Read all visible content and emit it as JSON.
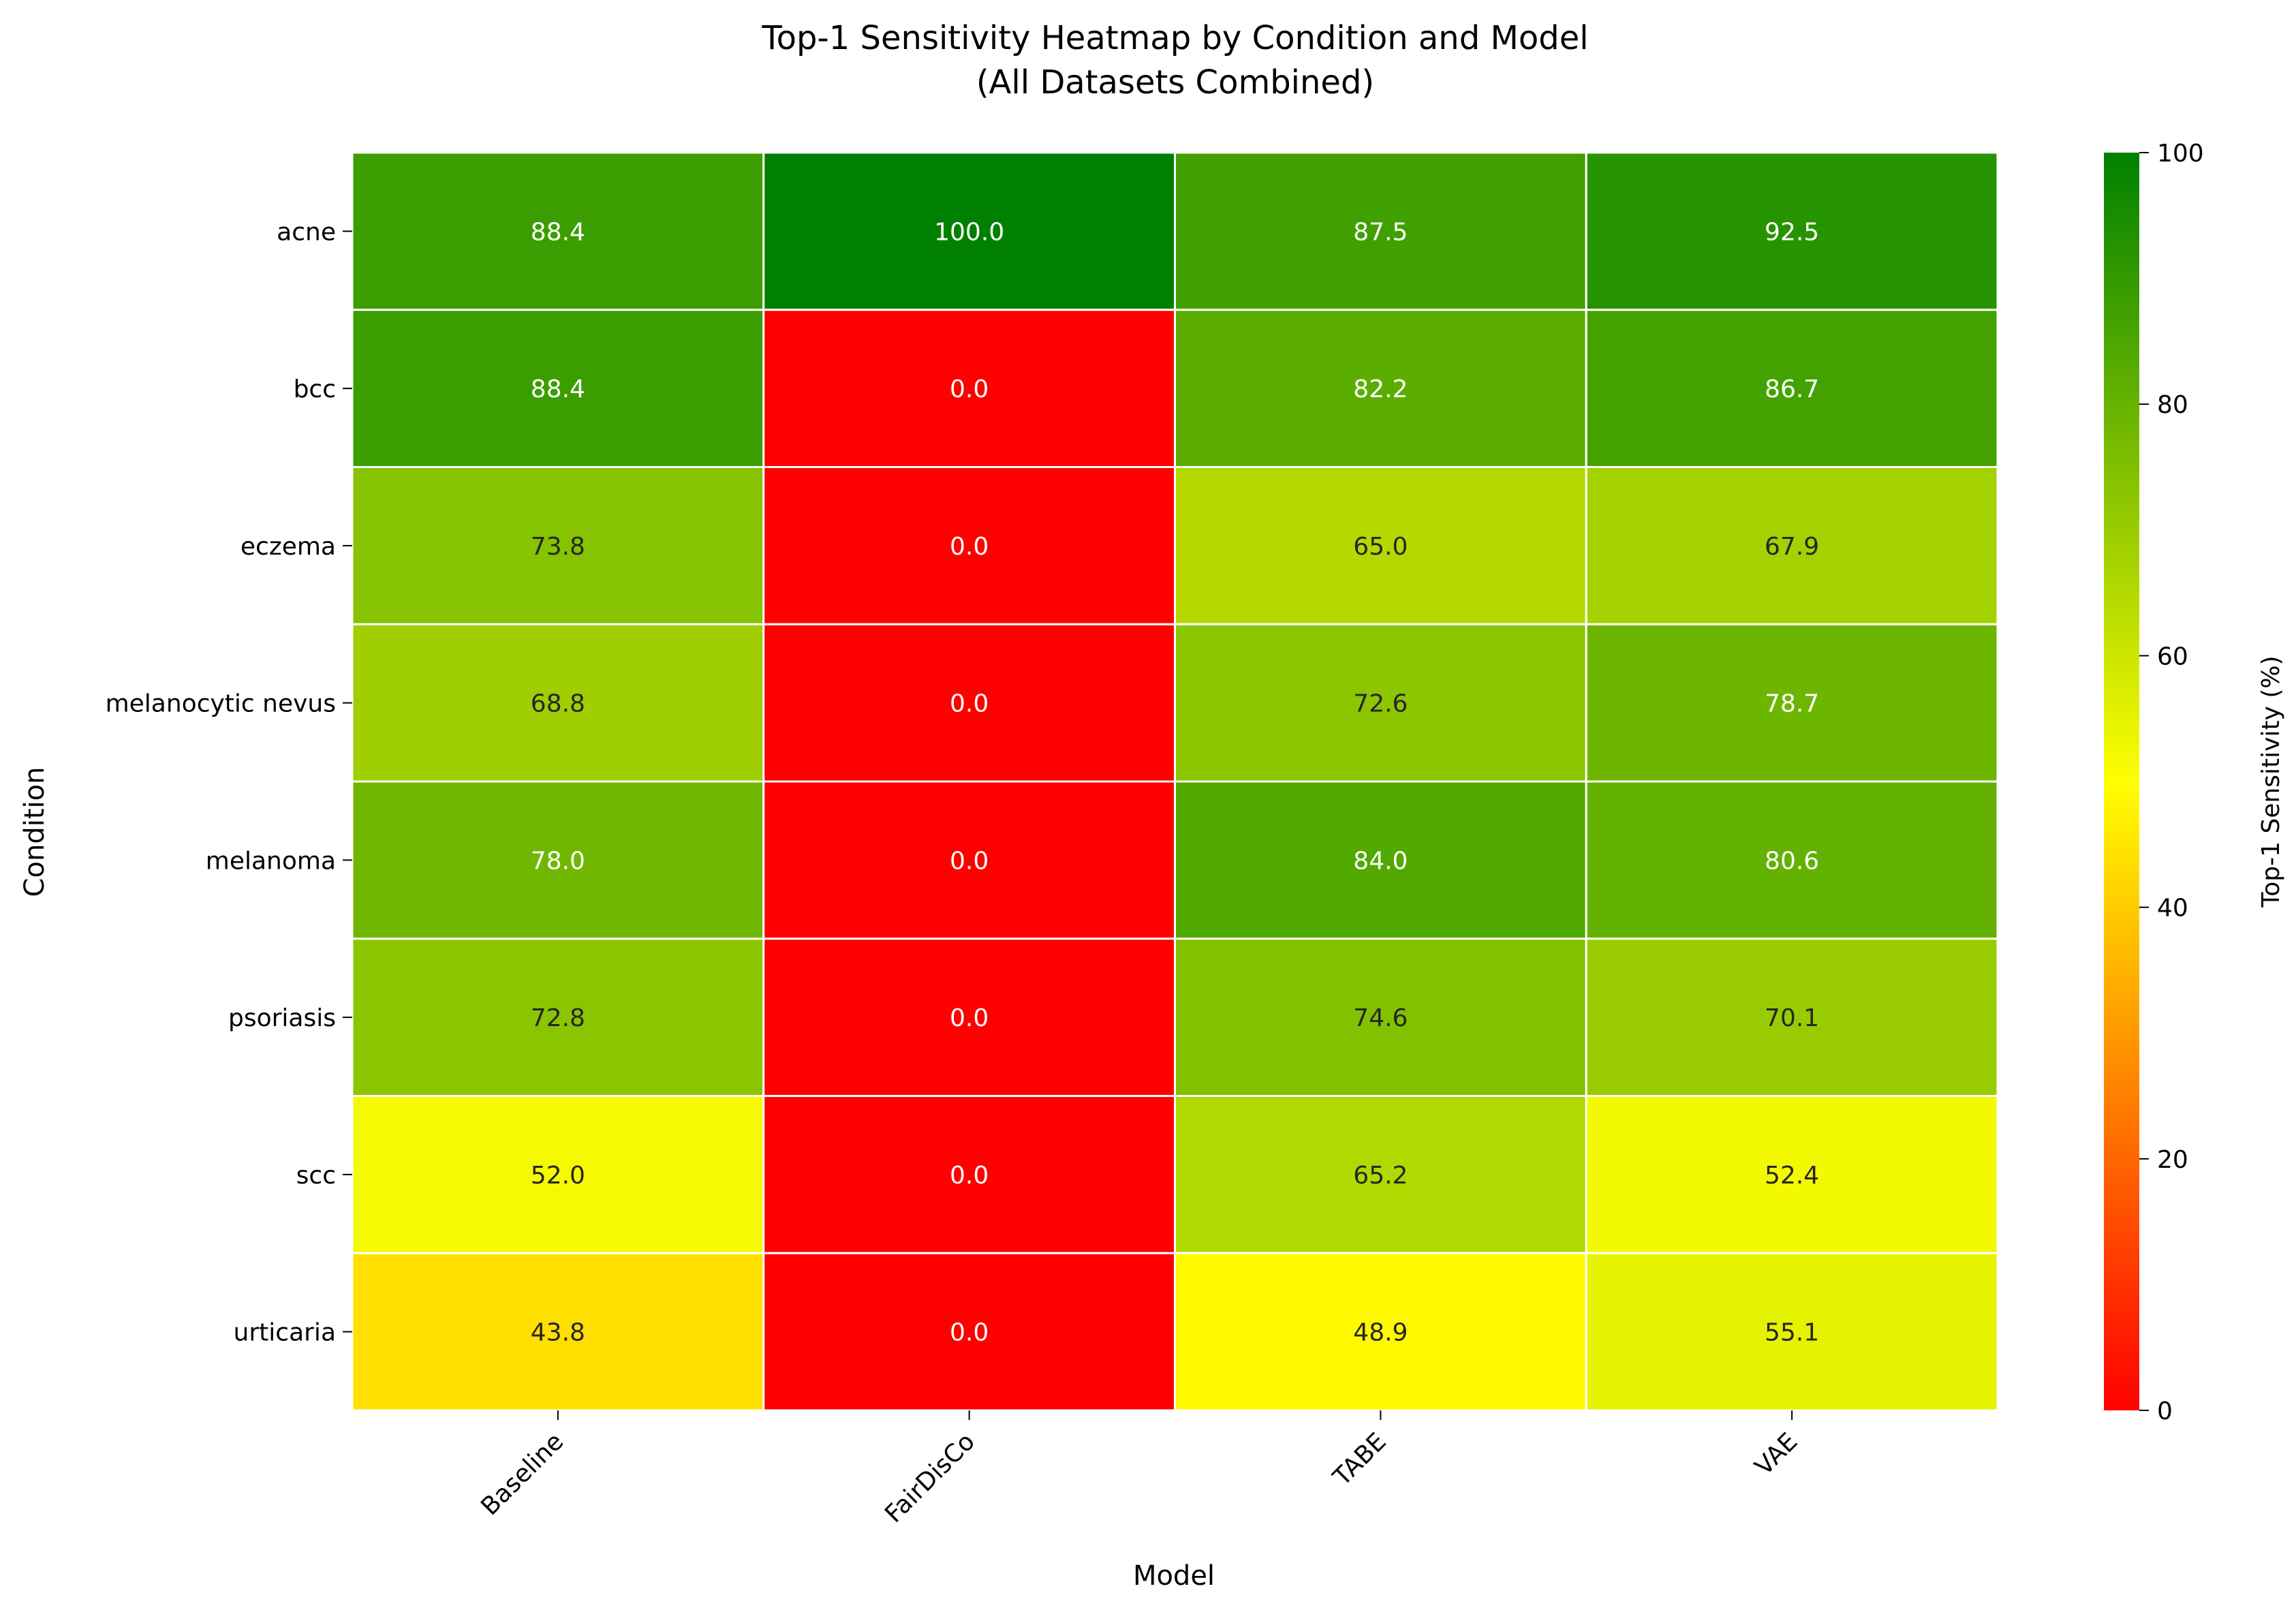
{
  "chart_data": {
    "type": "heatmap",
    "title": "Top-1 Sensitivity Heatmap by Condition and Model",
    "subtitle": "(All Datasets Combined)",
    "xlabel": "Model",
    "ylabel": "Condition",
    "x": [
      "Baseline",
      "FairDisCo",
      "TABE",
      "VAE"
    ],
    "y": [
      "acne",
      "bcc",
      "eczema",
      "melanocytic nevus",
      "melanoma",
      "psoriasis",
      "scc",
      "urticaria"
    ],
    "values": [
      [
        88.4,
        100.0,
        87.5,
        92.5
      ],
      [
        88.4,
        0.0,
        82.2,
        86.7
      ],
      [
        73.8,
        0.0,
        65.0,
        67.9
      ],
      [
        68.8,
        0.0,
        72.6,
        78.7
      ],
      [
        78.0,
        0.0,
        84.0,
        80.6
      ],
      [
        72.8,
        0.0,
        74.6,
        70.1
      ],
      [
        52.0,
        0.0,
        65.2,
        52.4
      ],
      [
        43.8,
        0.0,
        48.9,
        55.1
      ]
    ],
    "value_format": "0.0",
    "colorbar": {
      "label": "Top-1 Sensitivity (%)",
      "range": [
        0,
        100
      ],
      "ticks": [
        0,
        20,
        40,
        60,
        80,
        100
      ],
      "colors": [
        "#ff0000",
        "#ffff00",
        "#008000"
      ]
    },
    "grid": false,
    "legend": "colorbar-right"
  }
}
